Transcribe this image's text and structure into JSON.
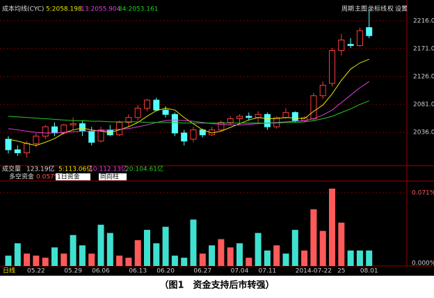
{
  "toolbar": {
    "title": "成本均线(CYC)",
    "ma_labels": [
      "5:2058.198",
      "13:2055.904",
      "34:2053.161"
    ],
    "buttons": [
      "周期",
      "主图",
      "坐标线",
      "权",
      "设置"
    ]
  },
  "volume_row": {
    "title": "成交量",
    "value": "123.19亿",
    "ma_labels": [
      "5:113.06亿",
      "10:112.13亿",
      "20:104.61亿"
    ]
  },
  "fund_row": {
    "title": "多空资金",
    "value": "0.057%",
    "period": "1日资金",
    "mode": "同向柱"
  },
  "axis_caption": "日线",
  "caption": "（图1　资金支持后市转强）",
  "chart_data": [
    {
      "type": "candlestick",
      "up_color": "#ff3c3c",
      "down_color": "#54ffff",
      "open": [
        2025,
        2008,
        2003,
        2018,
        2030,
        2045,
        2035,
        2048,
        2050,
        2038,
        2022,
        2040,
        2032,
        2052,
        2060,
        2075,
        2088,
        2072,
        2065,
        2035,
        2025,
        2040,
        2032,
        2040,
        2052,
        2058,
        2062,
        2060,
        2065,
        2045,
        2060,
        2068,
        2055,
        2058,
        2095,
        2115,
        2168,
        2178,
        2176,
        2205
      ],
      "high": [
        2030,
        2015,
        2022,
        2035,
        2048,
        2052,
        2050,
        2060,
        2055,
        2045,
        2045,
        2048,
        2055,
        2065,
        2080,
        2090,
        2092,
        2078,
        2068,
        2040,
        2045,
        2042,
        2045,
        2055,
        2062,
        2065,
        2068,
        2070,
        2068,
        2062,
        2075,
        2070,
        2062,
        2100,
        2118,
        2172,
        2195,
        2188,
        2205,
        2235
      ],
      "low": [
        2002,
        1998,
        1995,
        2012,
        2025,
        2030,
        2032,
        2040,
        2030,
        2015,
        2020,
        2030,
        2030,
        2045,
        2055,
        2070,
        2070,
        2060,
        2030,
        2015,
        2020,
        2028,
        2030,
        2038,
        2048,
        2050,
        2055,
        2050,
        2040,
        2042,
        2058,
        2052,
        2052,
        2055,
        2090,
        2110,
        2160,
        2172,
        2174,
        2188
      ],
      "close": [
        2008,
        2003,
        2018,
        2030,
        2045,
        2035,
        2048,
        2050,
        2038,
        2020,
        2040,
        2032,
        2052,
        2060,
        2075,
        2088,
        2072,
        2065,
        2035,
        2022,
        2040,
        2032,
        2040,
        2052,
        2058,
        2062,
        2060,
        2065,
        2045,
        2060,
        2068,
        2055,
        2060,
        2095,
        2112,
        2168,
        2185,
        2176,
        2200,
        2192
      ],
      "series": [
        {
          "color": "#e8e800",
          "values": [
            2025,
            2022,
            2018,
            2015,
            2020,
            2026,
            2035,
            2040,
            2043,
            2040,
            2038,
            2036,
            2040,
            2045,
            2052,
            2062,
            2071,
            2075,
            2072,
            2060,
            2050,
            2040,
            2035,
            2038,
            2044,
            2050,
            2056,
            2060,
            2058,
            2058,
            2060,
            2059,
            2058,
            2070,
            2080,
            2098,
            2120,
            2138,
            2148,
            2154
          ]
        },
        {
          "color": "#e040e0",
          "values": [
            2042,
            2040,
            2038,
            2036,
            2035,
            2035,
            2036,
            2037,
            2038,
            2038,
            2039,
            2040,
            2041,
            2042,
            2045,
            2048,
            2052,
            2055,
            2056,
            2055,
            2054,
            2052,
            2050,
            2049,
            2048,
            2048,
            2049,
            2050,
            2051,
            2052,
            2053,
            2054,
            2055,
            2058,
            2064,
            2072,
            2084,
            2096,
            2108,
            2118
          ]
        },
        {
          "color": "#20d020",
          "values": [
            2062,
            2061,
            2060,
            2059,
            2058,
            2057,
            2056,
            2055,
            2055,
            2054,
            2054,
            2053,
            2053,
            2053,
            2053,
            2052,
            2052,
            2052,
            2052,
            2051,
            2051,
            2051,
            2051,
            2051,
            2051,
            2051,
            2051,
            2051,
            2051,
            2051,
            2052,
            2052,
            2053,
            2055,
            2058,
            2062,
            2068,
            2074,
            2081,
            2087
          ]
        }
      ],
      "ylim": [
        1980,
        2245
      ],
      "yticks": [
        {
          "value": 2036,
          "label": "2036.0"
        },
        {
          "value": 2081,
          "label": "2081.0"
        },
        {
          "value": 2126,
          "label": "2126.0"
        },
        {
          "value": 2171,
          "label": "2171.0"
        },
        {
          "value": 2216,
          "label": "2216.0"
        }
      ],
      "grid": true
    },
    {
      "type": "bar",
      "categories": [
        null,
        null,
        null,
        "05.22",
        null,
        null,
        null,
        "05.29",
        null,
        null,
        "06.06",
        null,
        null,
        null,
        "06.13",
        null,
        null,
        "06.20",
        null,
        null,
        null,
        "06.27",
        null,
        null,
        null,
        "07.04",
        null,
        null,
        "07.11",
        null,
        null,
        null,
        null,
        "2014-07-22",
        null,
        null,
        "25",
        null,
        null,
        "08.01"
      ],
      "values": [
        0.01,
        0.022,
        0.012,
        0.01,
        0.008,
        0.018,
        0.012,
        0.03,
        0.02,
        0.012,
        0.04,
        0.032,
        0.01,
        0.008,
        0.025,
        0.035,
        0.022,
        0.038,
        0.01,
        0.008,
        0.045,
        0.012,
        0.02,
        0.026,
        0.018,
        0.022,
        0.008,
        0.032,
        0.015,
        0.02,
        0.012,
        0.035,
        0.015,
        0.055,
        0.034,
        0.075,
        0.042,
        0.015,
        0.015,
        0.015
      ],
      "bar_colors": [
        "#40e0d0",
        "#40e0d0",
        "#ff5a5a",
        "#ff5a5a",
        "#ff5a5a",
        "#40e0d0",
        "#ff5a5a",
        "#40e0d0",
        "#40e0d0",
        "#ff5a5a",
        "#40e0d0",
        "#40e0d0",
        "#ff5a5a",
        "#ff5a5a",
        "#ff5a5a",
        "#40e0d0",
        "#40e0d0",
        "#40e0d0",
        "#40e0d0",
        "#40e0d0",
        "#40e0d0",
        "#ff5a5a",
        "#40e0d0",
        "#ff5a5a",
        "#ff5a5a",
        "#40e0d0",
        "#ff5a5a",
        "#40e0d0",
        "#40e0d0",
        "#ff5a5a",
        "#40e0d0",
        "#40e0d0",
        "#ff5a5a",
        "#ff5a5a",
        "#ff5a5a",
        "#ff5a5a",
        "#ff5a5a",
        "#40e0d0",
        "#40e0d0",
        "#40e0d0"
      ],
      "ylim": [
        0,
        0.081
      ],
      "yticks": [
        {
          "value": 0,
          "label": "0.000%"
        },
        {
          "value": 0.071,
          "label": "0.071%"
        }
      ],
      "grid": true
    }
  ]
}
